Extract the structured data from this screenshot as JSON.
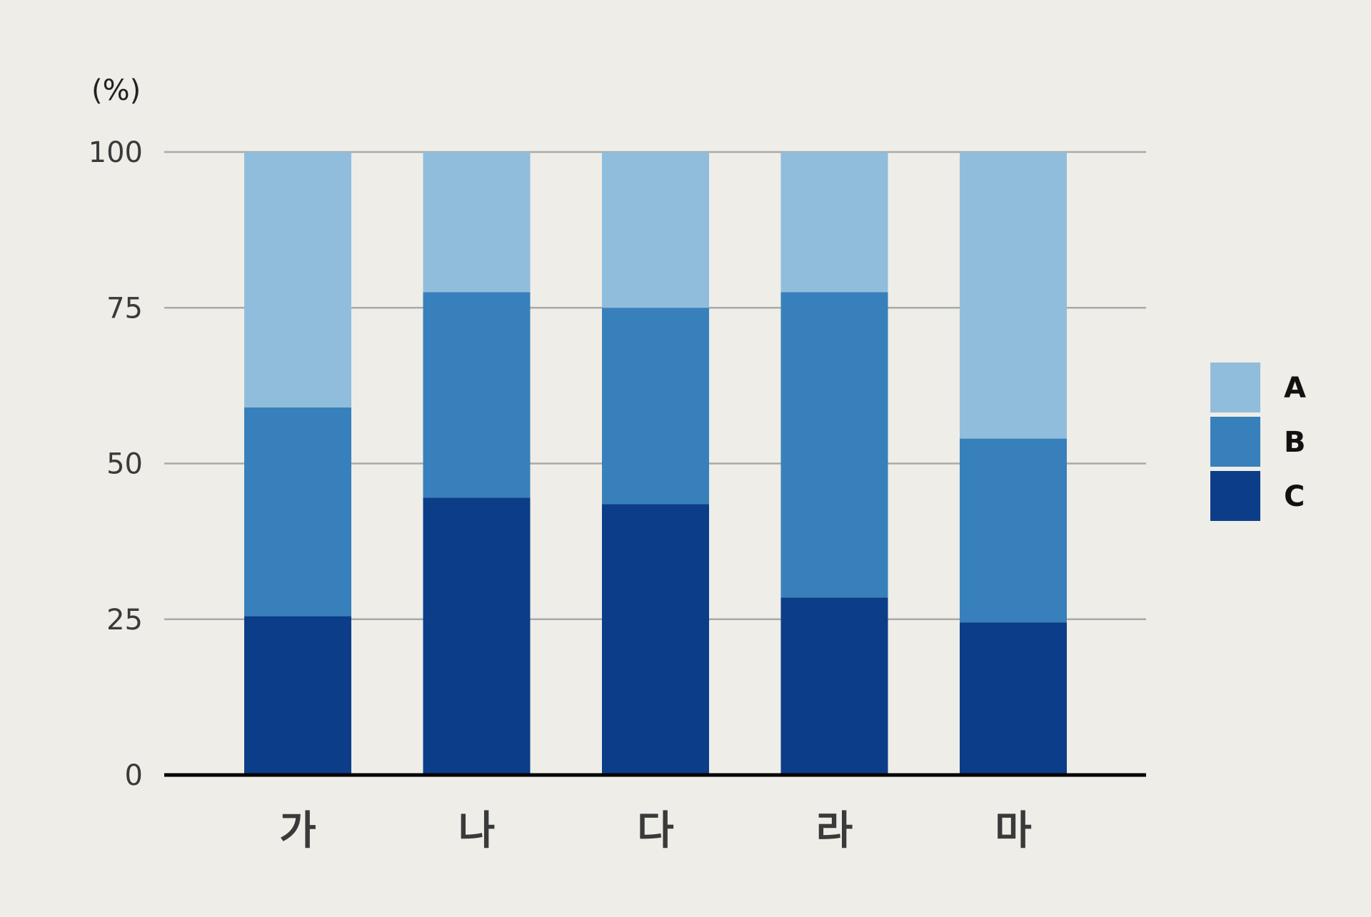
{
  "colors": {
    "background": "#eeede7",
    "grid": "#a9a9a9",
    "axis": "#000000",
    "A": "#90bddc",
    "B": "#3880bb",
    "C": "#0c3d89"
  },
  "chart_data": {
    "type": "bar",
    "stacked": true,
    "title": "",
    "xlabel": "",
    "ylabel": "(%)",
    "ylim": [
      0,
      100
    ],
    "yticks": [
      0,
      25,
      50,
      75,
      100
    ],
    "grid": true,
    "legend_position": "right",
    "categories": [
      "가",
      "나",
      "다",
      "라",
      "마"
    ],
    "series": [
      {
        "name": "C",
        "color": "#0c3d89",
        "values": [
          25.5,
          44.5,
          43.5,
          28.5,
          24.5
        ]
      },
      {
        "name": "B",
        "color": "#3880bb",
        "values": [
          33.5,
          33,
          31.5,
          49,
          29.5
        ]
      },
      {
        "name": "A",
        "color": "#90bddc",
        "values": [
          41,
          22.5,
          25,
          22.5,
          46
        ]
      }
    ],
    "legend": [
      "A",
      "B",
      "C"
    ]
  }
}
